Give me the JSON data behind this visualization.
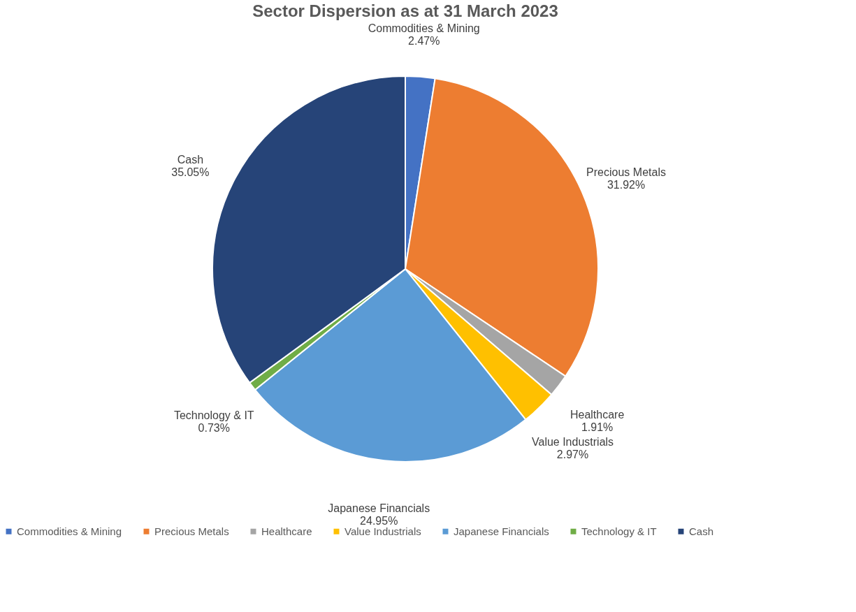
{
  "chart_data": {
    "type": "pie",
    "title": "Sector Dispersion as at 31 March 2023",
    "categories": [
      "Commodities & Mining",
      "Precious Metals",
      "Healthcare",
      "Value Industrials",
      "Japanese Financials",
      "Technology & IT",
      "Cash"
    ],
    "values": [
      2.47,
      31.92,
      1.91,
      2.97,
      24.95,
      0.73,
      35.05
    ],
    "value_labels": [
      "2.47%",
      "31.92%",
      "1.91%",
      "2.97%",
      "24.95%",
      "0.73%",
      "35.05%"
    ],
    "colors": [
      "#4472c4",
      "#ed7d31",
      "#a5a5a5",
      "#ffc000",
      "#5b9bd5",
      "#70ad47",
      "#264478"
    ],
    "legend": "bottom"
  }
}
